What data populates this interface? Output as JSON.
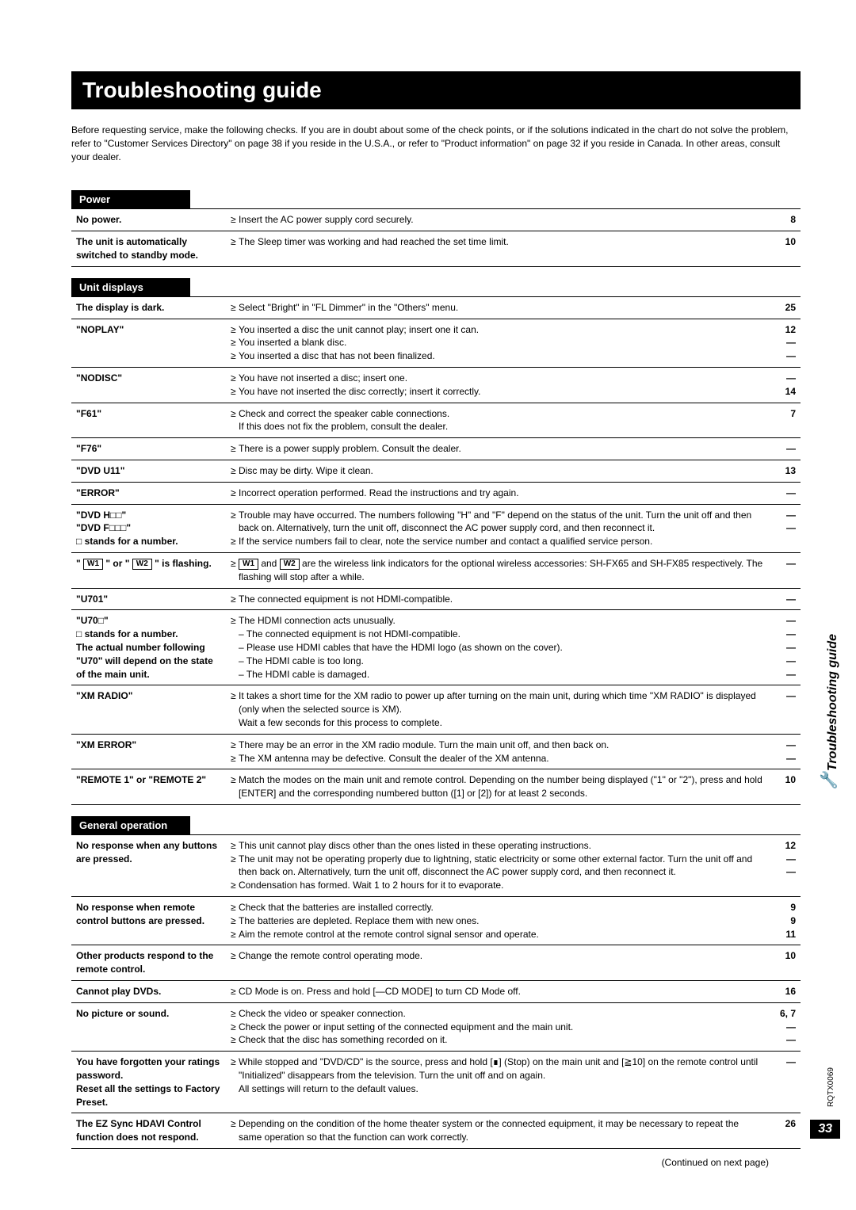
{
  "title": "Troubleshooting guide",
  "intro": "Before requesting service, make the following checks. If you are in doubt about some of the check points, or if the solutions indicated in the chart do not solve the problem, refer to \"Customer Services Directory\" on page 38 if you reside in the U.S.A., or refer to \"Product information\" on page 32 if you reside in Canada. In other areas, consult your dealer.",
  "sections": {
    "power": {
      "label": "Power"
    },
    "unit": {
      "label": "Unit displays"
    },
    "general": {
      "label": "General operation"
    }
  },
  "power_rows": [
    {
      "symptom": "No power.",
      "lines": [
        "Insert the AC power supply cord securely."
      ],
      "pages": [
        "8"
      ]
    },
    {
      "symptom": "The unit is automatically switched to standby mode.",
      "lines": [
        "The Sleep timer was working and had reached the set time limit."
      ],
      "pages": [
        "10"
      ]
    }
  ],
  "unit_rows": [
    {
      "symptom": "The display is dark.",
      "lines": [
        "Select \"Bright\" in \"FL Dimmer\" in the \"Others\" menu."
      ],
      "pages": [
        "25"
      ]
    },
    {
      "symptom": "\"NOPLAY\"",
      "lines": [
        "You inserted a disc the unit cannot play; insert one it can.",
        "You inserted a blank disc.",
        "You inserted a disc that has not been finalized."
      ],
      "pages": [
        "12",
        "—",
        "—"
      ]
    },
    {
      "symptom": "\"NODISC\"",
      "lines": [
        "You have not inserted a disc; insert one.",
        "You have not inserted the disc correctly; insert it correctly."
      ],
      "pages": [
        "—",
        "14"
      ]
    },
    {
      "symptom": "\"F61\"",
      "lines": [
        "Check and correct the speaker cable connections.\nIf this does not fix the problem, consult the dealer."
      ],
      "pages": [
        "7"
      ]
    },
    {
      "symptom": "\"F76\"",
      "lines": [
        "There is a power supply problem. Consult the dealer."
      ],
      "pages": [
        "—"
      ]
    },
    {
      "symptom": "\"DVD U11\"",
      "lines": [
        "Disc may be dirty. Wipe it clean."
      ],
      "pages": [
        "13"
      ]
    },
    {
      "symptom": "\"ERROR\"",
      "lines": [
        "Incorrect operation performed. Read the instructions and try again."
      ],
      "pages": [
        "—"
      ]
    },
    {
      "symptom": "\"DVD H□□\"\n\"DVD F□□□\"\n□ stands for a number.",
      "lines": [
        "Trouble may have occurred. The numbers following \"H\" and \"F\" depend on the status of the unit. Turn the unit off and then back on. Alternatively, turn the unit off, disconnect the AC power supply cord, and then reconnect it.",
        "If the service numbers fail to clear, note the service number and contact a qualified service person."
      ],
      "pages": [
        "—",
        "—"
      ]
    },
    {
      "symptom_html": true,
      "symptom": "w1w2flash",
      "lines_html": true,
      "lines": [
        "w1w2desc"
      ],
      "pages": [
        "—"
      ]
    },
    {
      "symptom": "\"U701\"",
      "lines": [
        "The connected equipment is not HDMI-compatible."
      ],
      "pages": [
        "—"
      ]
    },
    {
      "symptom": "\"U70□\"\n□ stands for a number.\nThe actual number following \"U70\" will depend on the state of the main unit.",
      "lines": [
        "The HDMI connection acts unusually.\n– The connected equipment is not HDMI-compatible.\n– Please use HDMI cables that have the HDMI logo (as shown on the cover).\n– The HDMI cable is too long.\n– The HDMI cable is damaged."
      ],
      "pages": [
        "—",
        "—",
        "—",
        "—",
        "—"
      ]
    },
    {
      "symptom": "\"XM RADIO\"",
      "lines": [
        "It takes a short time for the XM radio to power up after turning on the main unit, during which time \"XM RADIO\" is displayed (only when the selected source is XM).\nWait a few seconds for this process to complete."
      ],
      "pages": [
        "—"
      ]
    },
    {
      "symptom": "\"XM ERROR\"",
      "lines": [
        "There may be an error in the XM radio module. Turn the main unit off, and then back on.",
        "The XM antenna may be defective. Consult the dealer of the XM antenna."
      ],
      "pages": [
        "—",
        "—"
      ]
    },
    {
      "symptom": "\"REMOTE 1\" or \"REMOTE 2\"",
      "lines": [
        "Match the modes on the main unit and remote control. Depending on the number being displayed (\"1\" or \"2\"), press and hold [ENTER] and the corresponding numbered button ([1] or [2]) for at least 2 seconds."
      ],
      "pages": [
        "10"
      ]
    }
  ],
  "general_rows": [
    {
      "symptom": "No response when any buttons are pressed.",
      "lines": [
        "This unit cannot play discs other than the ones listed in these operating instructions.",
        "The unit may not be operating properly due to lightning, static electricity or some other external factor. Turn the unit off and then back on. Alternatively, turn the unit off, disconnect the AC power supply cord, and then reconnect it.",
        "Condensation has formed. Wait 1 to 2 hours for it to evaporate."
      ],
      "pages": [
        "12",
        "—",
        "—"
      ]
    },
    {
      "symptom": "No response when remote control buttons are pressed.",
      "lines": [
        "Check that the batteries are installed correctly.",
        "The batteries are depleted. Replace them with new ones.",
        "Aim the remote control at the remote control signal sensor and operate."
      ],
      "pages": [
        "9",
        "9",
        "11"
      ]
    },
    {
      "symptom": "Other products respond to the remote control.",
      "lines": [
        "Change the remote control operating mode."
      ],
      "pages": [
        "10"
      ]
    },
    {
      "symptom": "Cannot play DVDs.",
      "lines": [
        "CD Mode is on. Press and hold [—CD MODE] to turn CD Mode off."
      ],
      "pages": [
        "16"
      ]
    },
    {
      "symptom": "No picture or sound.",
      "lines": [
        "Check the video or speaker connection.",
        "Check the power or input setting of the connected equipment and the main unit.",
        "Check that the disc has something recorded on it."
      ],
      "pages": [
        "6, 7",
        "—",
        "—"
      ]
    },
    {
      "symptom": "You have forgotten your ratings password.\nReset all the settings to Factory Preset.",
      "lines_html": true,
      "lines": [
        "forgotpw"
      ],
      "pages": [
        "—"
      ]
    },
    {
      "symptom": "The EZ Sync HDAVI Control function does not respond.",
      "lines": [
        "Depending on the condition of the home theater system or the connected equipment, it may be necessary to repeat the same operation so that the function can work correctly."
      ],
      "pages": [
        "26"
      ]
    }
  ],
  "special_html": {
    "w1w2flash": "\" <span class='boxkey'>W1</span> \" or \" <span class='boxkey'>W2</span> \" is flashing.",
    "w1w2desc": "<span class='boxkey'>W1</span> and <span class='boxkey'>W2</span> are the wireless link indicators for the optional wireless accessories: SH-FX65 and SH-FX85 respectively. The flashing will stop after a while.",
    "forgotpw": "While stopped and \"DVD/CD\" is the source, press and hold [∎] (Stop) on the main unit and [≧10] on the remote control until \"Initialized\" disappears from the television. Turn the unit off and on again.<br>All settings will return to the default values."
  },
  "continued": "(Continued on next page)",
  "side_label": "Troubleshooting guide",
  "doc_code": "RQTX0069",
  "page_number": "33"
}
